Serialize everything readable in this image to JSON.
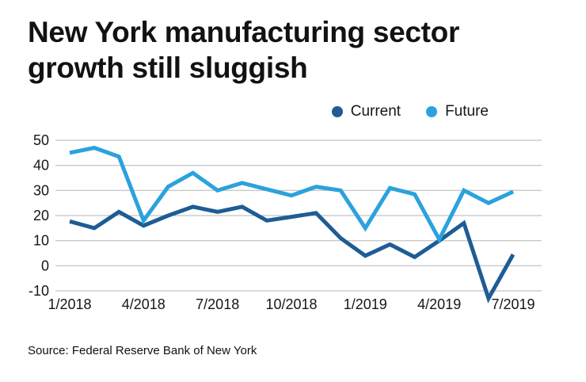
{
  "title": "New York manufacturing sector growth still sluggish",
  "source": "Source: Federal Reserve Bank of New York",
  "colors": {
    "text": "#161616",
    "grid": "#b5b5b5",
    "background": "#ffffff"
  },
  "legend": {
    "items": [
      {
        "label": "Current",
        "color": "#1e5c94"
      },
      {
        "label": "Future",
        "color": "#2ba2dd"
      }
    ]
  },
  "chart_data": {
    "type": "line",
    "title": "New York manufacturing sector growth still sluggish",
    "xlabel": "",
    "ylabel": "",
    "x": [
      "1/2018",
      "2/2018",
      "3/2018",
      "4/2018",
      "5/2018",
      "6/2018",
      "7/2018",
      "8/2018",
      "9/2018",
      "10/2018",
      "11/2018",
      "12/2018",
      "1/2019",
      "2/2019",
      "3/2019",
      "4/2019",
      "5/2019",
      "6/2019",
      "7/2019"
    ],
    "series": [
      {
        "name": "Current",
        "color": "#1e5c94",
        "values": [
          17.7,
          15,
          21.5,
          16,
          20,
          23.5,
          21.5,
          23.5,
          18,
          19.5,
          21,
          11,
          4,
          8.5,
          3.5,
          10,
          17,
          -13,
          4.5
        ]
      },
      {
        "name": "Future",
        "color": "#2ba2dd",
        "values": [
          45,
          47,
          43.5,
          18,
          31.5,
          37,
          30,
          33,
          30.5,
          28,
          31.5,
          30,
          15,
          31,
          28.5,
          10.5,
          30,
          25,
          29.5
        ]
      }
    ],
    "ylim": [
      -15,
      50
    ],
    "yticks": [
      50,
      40,
      30,
      20,
      10,
      0,
      -10
    ],
    "xticks": [
      {
        "index": 0,
        "label": "1/2018"
      },
      {
        "index": 3,
        "label": "4/2018"
      },
      {
        "index": 6,
        "label": "7/2018"
      },
      {
        "index": 9,
        "label": "10/2018"
      },
      {
        "index": 12,
        "label": "1/2019"
      },
      {
        "index": 15,
        "label": "4/2019"
      },
      {
        "index": 18,
        "label": "7/2019"
      }
    ],
    "grid": true,
    "legend_position": "top-right"
  }
}
